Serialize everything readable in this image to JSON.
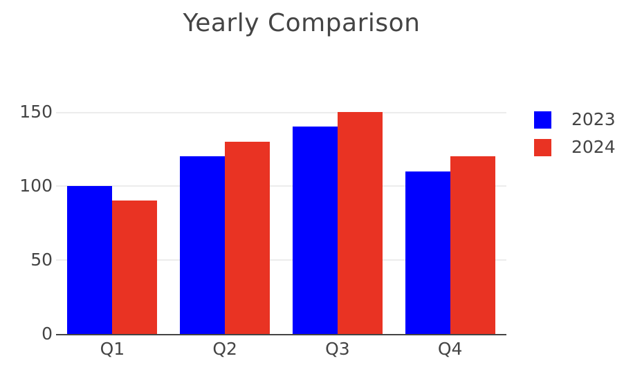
{
  "chart_data": {
    "type": "bar",
    "title": "Yearly Comparison",
    "categories": [
      "Q1",
      "Q2",
      "Q3",
      "Q4"
    ],
    "series": [
      {
        "name": "2023",
        "color": "#0000ff",
        "values": [
          100,
          120,
          140,
          110
        ]
      },
      {
        "name": "2024",
        "color": "#e93323",
        "values": [
          90,
          130,
          150,
          120
        ]
      }
    ],
    "xlabel": "",
    "ylabel": "",
    "ylim": [
      0,
      150
    ],
    "yticks": [
      0,
      50,
      100,
      150
    ],
    "grid": true,
    "legend_position": "right",
    "colors": {
      "text": "#444444",
      "gridline": "#ececec",
      "axis_line": "#444444",
      "background": "#ffffff"
    }
  }
}
